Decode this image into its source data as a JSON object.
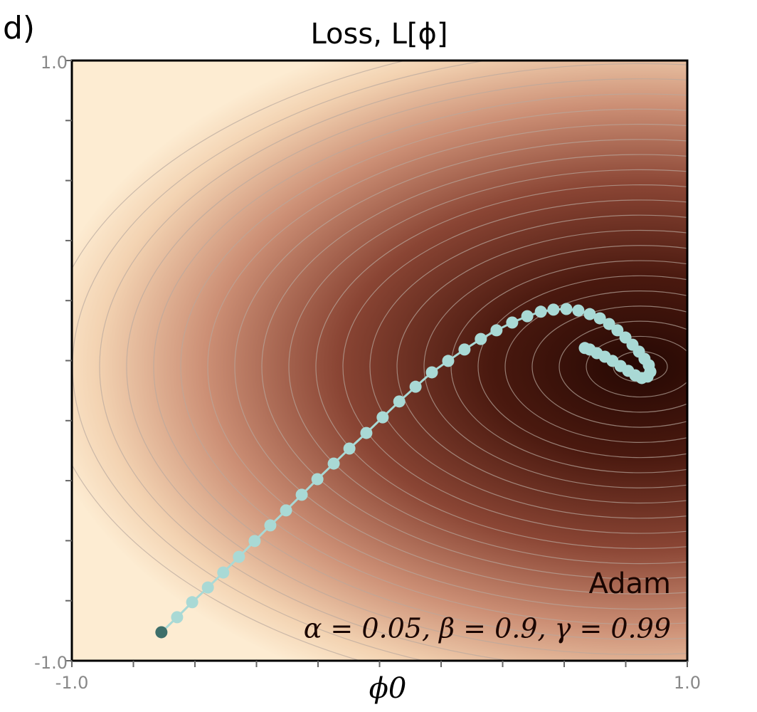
{
  "chart_data": {
    "type": "contour",
    "panel_label": "d)",
    "title": "Loss, L[ϕ]",
    "x_label": "ϕ0",
    "xlim": [
      -1,
      1
    ],
    "ylim": [
      -1,
      1
    ],
    "xticks": [
      {
        "value": -1,
        "label": "-1.0"
      },
      {
        "value": 1,
        "label": "1.0"
      }
    ],
    "yticks": [
      {
        "value": -1,
        "label": "-1.0"
      },
      {
        "value": 1,
        "label": "1.0"
      }
    ],
    "x_minor_ticks": [
      -0.8,
      -0.6,
      -0.4,
      -0.2,
      0,
      0.2,
      0.4,
      0.6,
      0.8
    ],
    "y_minor_ticks": [
      -0.8,
      -0.6,
      -0.4,
      -0.2,
      0,
      0.2,
      0.4,
      0.6,
      0.8
    ],
    "annotations": [
      "Adam",
      "α = 0.05, β = 0.9, γ = 0.99"
    ],
    "trajectory": {
      "color": "#a9d9d5",
      "start_color": "#3e6f6a",
      "x": [
        -0.709,
        -0.658,
        -0.609,
        -0.558,
        -0.508,
        -0.457,
        -0.406,
        -0.355,
        -0.304,
        -0.253,
        -0.202,
        -0.149,
        -0.098,
        -0.043,
        0.01,
        0.064,
        0.117,
        0.17,
        0.223,
        0.276,
        0.329,
        0.38,
        0.431,
        0.48,
        0.524,
        0.565,
        0.607,
        0.646,
        0.683,
        0.716,
        0.746,
        0.773,
        0.799,
        0.822,
        0.843,
        0.861,
        0.875,
        0.88,
        0.871,
        0.852,
        0.831,
        0.808,
        0.783,
        0.757,
        0.732,
        0.706,
        0.683,
        0.667
      ],
      "y": [
        -0.905,
        -0.855,
        -0.805,
        -0.756,
        -0.706,
        -0.654,
        -0.601,
        -0.549,
        -0.499,
        -0.447,
        -0.395,
        -0.343,
        -0.293,
        -0.241,
        -0.189,
        -0.136,
        -0.087,
        -0.039,
        -0.001,
        0.037,
        0.072,
        0.101,
        0.127,
        0.148,
        0.163,
        0.17,
        0.172,
        0.167,
        0.155,
        0.141,
        0.122,
        0.101,
        0.077,
        0.053,
        0.03,
        0.006,
        -0.015,
        -0.037,
        -0.053,
        -0.058,
        -0.049,
        -0.034,
        -0.018,
        -0.001,
        0.013,
        0.025,
        0.037,
        0.042
      ]
    }
  }
}
